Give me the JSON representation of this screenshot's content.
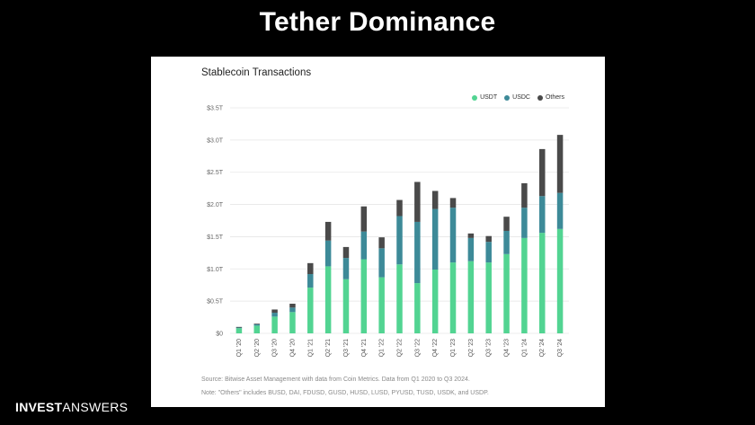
{
  "slide": {
    "title": "Tether Dominance"
  },
  "brand": {
    "part1": "INVEST",
    "part2": "ANSWERS"
  },
  "colors": {
    "usdt": "#52d492",
    "usdc": "#3d8a98",
    "others": "#4a4a4a"
  },
  "chart_data": {
    "type": "bar",
    "stacked": true,
    "title": "Stablecoin Transactions",
    "ylabel": "",
    "xlabel": "",
    "ylim": [
      0,
      3.5
    ],
    "yticks": [
      0,
      0.5,
      1.0,
      1.5,
      2.0,
      2.5,
      3.0,
      3.5
    ],
    "ytick_labels": [
      "$0",
      "$0.5T",
      "$1.0T",
      "$1.5T",
      "$2.0T",
      "$2.5T",
      "$3.0T",
      "$3.5T"
    ],
    "legend_position": "top-right",
    "categories": [
      "Q1 '20",
      "Q2 '20",
      "Q3 '20",
      "Q4 '20",
      "Q1 '21",
      "Q2 '21",
      "Q3 '21",
      "Q4 '21",
      "Q1 '22",
      "Q2 '22",
      "Q3 '22",
      "Q4 '22",
      "Q1 '23",
      "Q2 '23",
      "Q3 '23",
      "Q4 '23",
      "Q1 '24",
      "Q2 '24",
      "Q3 '24"
    ],
    "series": [
      {
        "name": "USDT",
        "color": "#52d492",
        "values": [
          0.08,
          0.12,
          0.26,
          0.33,
          0.71,
          1.04,
          0.84,
          1.15,
          0.87,
          1.07,
          0.78,
          0.99,
          1.1,
          1.12,
          1.1,
          1.23,
          1.48,
          1.56,
          1.62
        ]
      },
      {
        "name": "USDC",
        "color": "#3d8a98",
        "values": [
          0.01,
          0.02,
          0.06,
          0.07,
          0.21,
          0.4,
          0.33,
          0.43,
          0.45,
          0.75,
          0.95,
          0.94,
          0.85,
          0.36,
          0.32,
          0.36,
          0.47,
          0.57,
          0.56
        ]
      },
      {
        "name": "Others",
        "color": "#4a4a4a",
        "values": [
          0.01,
          0.01,
          0.05,
          0.06,
          0.17,
          0.29,
          0.17,
          0.39,
          0.17,
          0.25,
          0.62,
          0.28,
          0.15,
          0.07,
          0.09,
          0.22,
          0.38,
          0.73,
          0.9
        ]
      }
    ],
    "source_note": "Source: Bitwise Asset Management with data from Coin Metrics. Data from Q1 2020 to Q3 2024.",
    "others_note": "Note: \"Others\" includes BUSD, DAI, FDUSD, GUSD, HUSD, LUSD, PYUSD, TUSD, USDK, and USDP."
  }
}
